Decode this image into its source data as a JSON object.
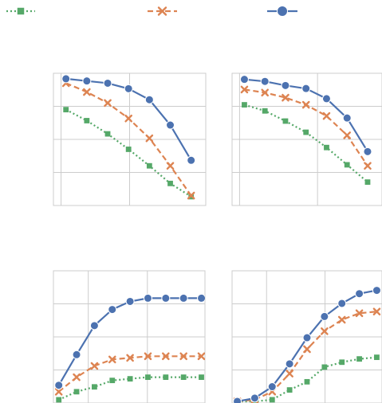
{
  "colors": {
    "blue": "#4c72b0",
    "orange": "#dd8452",
    "green": "#55a868",
    "grid": "#cccccc",
    "background": "#ffffff"
  },
  "legend": {
    "placement": "top",
    "entries": [
      {
        "series": "green",
        "marker": "square",
        "line": "dotted"
      },
      {
        "series": "orange",
        "marker": "x",
        "line": "dashed"
      },
      {
        "series": "blue",
        "marker": "circle",
        "line": "solid"
      }
    ]
  },
  "chart_data": [
    {
      "type": "line",
      "panel": "top-left",
      "grid": true,
      "x": [
        0,
        1,
        2,
        3,
        4,
        5,
        6
      ],
      "series": [
        {
          "key": "blue",
          "marker": "circle",
          "line": "solid",
          "values": [
            0.95,
            0.93,
            0.91,
            0.86,
            0.76,
            0.53,
            0.21
          ]
        },
        {
          "key": "orange",
          "marker": "x",
          "line": "dashed",
          "values": [
            0.91,
            0.83,
            0.73,
            0.59,
            0.41,
            0.16,
            -0.11
          ]
        },
        {
          "key": "green",
          "marker": "square",
          "line": "dotted",
          "values": [
            0.67,
            0.57,
            0.45,
            0.31,
            0.16,
            0.0,
            -0.12
          ]
        }
      ]
    },
    {
      "type": "line",
      "panel": "top-right",
      "grid": true,
      "x": [
        0,
        1,
        2,
        3,
        4,
        5,
        6
      ],
      "series": [
        {
          "key": "blue",
          "marker": "circle",
          "line": "solid",
          "values": [
            1.04,
            1.02,
            0.98,
            0.95,
            0.85,
            0.66,
            0.33
          ]
        },
        {
          "key": "orange",
          "marker": "x",
          "line": "dashed",
          "values": [
            0.94,
            0.91,
            0.86,
            0.79,
            0.68,
            0.49,
            0.19
          ]
        },
        {
          "key": "green",
          "marker": "square",
          "line": "dotted",
          "values": [
            0.79,
            0.73,
            0.63,
            0.52,
            0.37,
            0.2,
            0.03
          ]
        }
      ]
    },
    {
      "type": "line",
      "panel": "bottom-left",
      "grid": true,
      "x": [
        0,
        1,
        2,
        3,
        4,
        5,
        6,
        7,
        8
      ],
      "series": [
        {
          "key": "blue",
          "marker": "circle",
          "line": "solid",
          "values": [
            0.09,
            0.28,
            0.46,
            0.56,
            0.61,
            0.63,
            0.63,
            0.63,
            0.63
          ]
        },
        {
          "key": "orange",
          "marker": "x",
          "line": "dashed",
          "values": [
            0.05,
            0.14,
            0.21,
            0.25,
            0.26,
            0.27,
            0.27,
            0.27,
            0.27
          ]
        },
        {
          "key": "green",
          "marker": "square",
          "line": "dotted",
          "values": [
            0.0,
            0.05,
            0.08,
            0.12,
            0.13,
            0.14,
            0.14,
            0.14,
            0.14
          ]
        }
      ]
    },
    {
      "type": "line",
      "panel": "bottom-right",
      "grid": true,
      "x": [
        0,
        1,
        2,
        3,
        4,
        5,
        6,
        7,
        8
      ],
      "series": [
        {
          "key": "blue",
          "marker": "circle",
          "line": "solid",
          "values": [
            0.0,
            0.02,
            0.09,
            0.23,
            0.39,
            0.52,
            0.6,
            0.66,
            0.68
          ]
        },
        {
          "key": "orange",
          "marker": "x",
          "line": "dashed",
          "values": [
            0.0,
            0.01,
            0.06,
            0.17,
            0.32,
            0.43,
            0.5,
            0.54,
            0.55
          ]
        },
        {
          "key": "green",
          "marker": "square",
          "line": "dotted",
          "values": [
            0.0,
            0.0,
            0.01,
            0.07,
            0.12,
            0.21,
            0.24,
            0.26,
            0.27
          ]
        }
      ]
    }
  ]
}
